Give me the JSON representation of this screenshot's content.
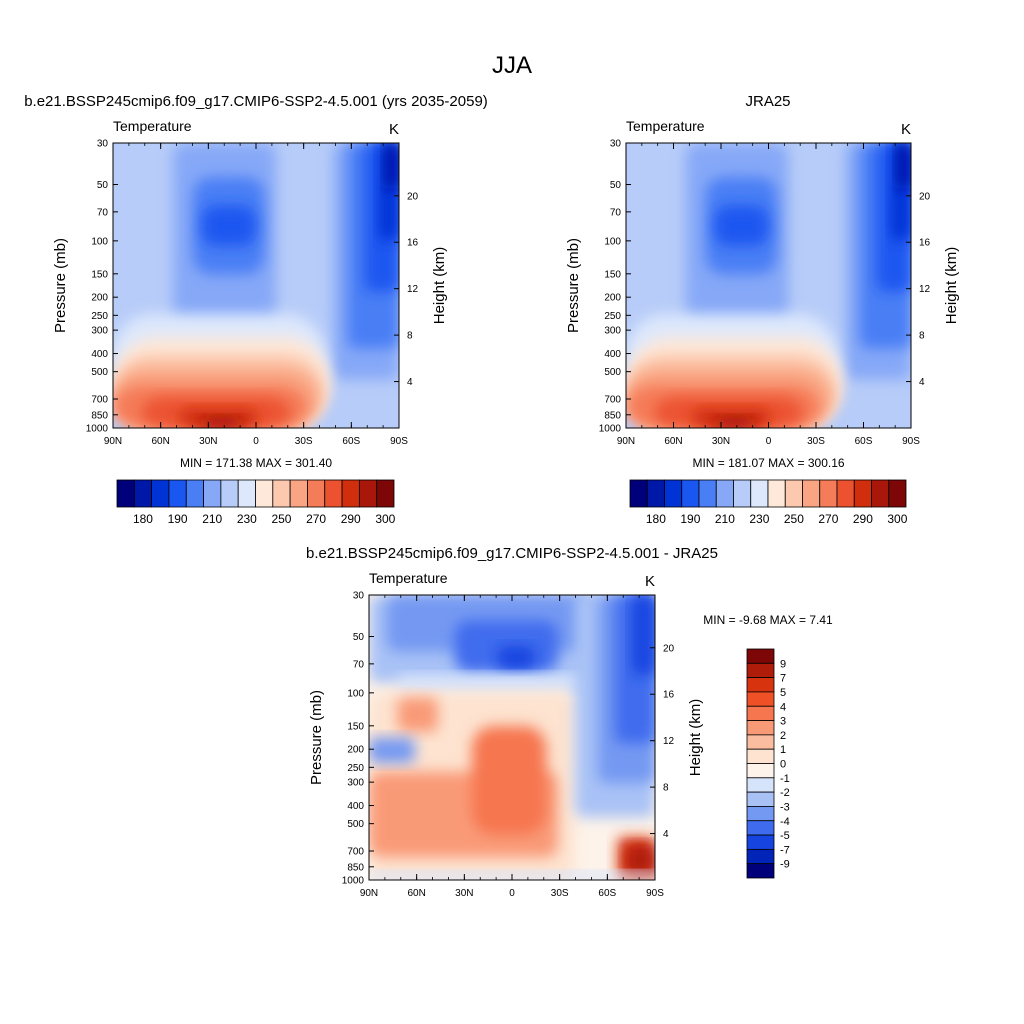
{
  "figure": {
    "title": "JJA"
  },
  "chart_data": [
    {
      "type": "heatmap",
      "title": "b.e21.BSSP245cmip6.f09_g17.CMIP6-SSP2-4.5.001 (yrs 2035-2059)",
      "variable": "Temperature",
      "units": "K",
      "ylabel": "Pressure (mb)",
      "y2label": "Height (km)",
      "x_ticks": [
        "90N",
        "60N",
        "30N",
        "0",
        "30S",
        "60S",
        "90S"
      ],
      "y_ticks": [
        "30",
        "50",
        "70",
        "100",
        "150",
        "200",
        "250",
        "300",
        "400",
        "500",
        "700",
        "850",
        "1000"
      ],
      "y2_ticks": [
        "20",
        "16",
        "12",
        "8",
        "4"
      ],
      "min": "171.38",
      "max": "301.40",
      "stats_text": "MIN = 171.38  MAX = 301.40",
      "colorbar_labels": [
        "180",
        "190",
        "210",
        "230",
        "250",
        "270",
        "290",
        "300"
      ],
      "colorbar_colors": [
        "#00007a",
        "#0018a8",
        "#0033d6",
        "#1a56f0",
        "#4a7ef5",
        "#86a8f7",
        "#b7ccf8",
        "#dde8fc",
        "#fde8da",
        "#fcc9ae",
        "#f9a482",
        "#f57c58",
        "#ec5230",
        "#d02e0c",
        "#a8170a",
        "#7d0607"
      ]
    },
    {
      "type": "heatmap",
      "title": "JRA25",
      "variable": "Temperature",
      "units": "K",
      "ylabel": "Pressure (mb)",
      "y2label": "Height (km)",
      "x_ticks": [
        "90N",
        "60N",
        "30N",
        "0",
        "30S",
        "60S",
        "90S"
      ],
      "y_ticks": [
        "30",
        "50",
        "70",
        "100",
        "150",
        "200",
        "250",
        "300",
        "400",
        "500",
        "700",
        "850",
        "1000"
      ],
      "y2_ticks": [
        "20",
        "16",
        "12",
        "8",
        "4"
      ],
      "min": "181.07",
      "max": "300.16",
      "stats_text": "MIN = 181.07  MAX = 300.16",
      "colorbar_labels": [
        "180",
        "190",
        "210",
        "230",
        "250",
        "270",
        "290",
        "300"
      ],
      "colorbar_colors": [
        "#00007a",
        "#0018a8",
        "#0033d6",
        "#1a56f0",
        "#4a7ef5",
        "#86a8f7",
        "#b7ccf8",
        "#dde8fc",
        "#fde8da",
        "#fcc9ae",
        "#f9a482",
        "#f57c58",
        "#ec5230",
        "#d02e0c",
        "#a8170a",
        "#7d0607"
      ]
    },
    {
      "type": "heatmap",
      "title": "b.e21.BSSP245cmip6.f09_g17.CMIP6-SSP2-4.5.001 - JRA25",
      "variable": "Temperature",
      "units": "K",
      "ylabel": "Pressure (mb)",
      "y2label": "Height (km)",
      "x_ticks": [
        "90N",
        "60N",
        "30N",
        "0",
        "30S",
        "60S",
        "90S"
      ],
      "y_ticks": [
        "30",
        "50",
        "70",
        "100",
        "150",
        "200",
        "250",
        "300",
        "400",
        "500",
        "700",
        "850",
        "1000"
      ],
      "y2_ticks": [
        "20",
        "16",
        "12",
        "8",
        "4"
      ],
      "min": "-9.68",
      "max": "7.41",
      "stats_text": "MIN =  -9.68  MAX =   7.41",
      "colorbar_labels": [
        "9",
        "7",
        "5",
        "4",
        "3",
        "2",
        "1",
        "0",
        "-1",
        "-2",
        "-3",
        "-4",
        "-5",
        "-7",
        "-9"
      ],
      "colorbar_colors": [
        "#7d0607",
        "#b01c0a",
        "#d8330f",
        "#ef5026",
        "#f67650",
        "#f99a77",
        "#fbbd9f",
        "#fde3d0",
        "#fdf3ea",
        "#d5e3fb",
        "#a9c2f6",
        "#7499f2",
        "#3f6cee",
        "#1544e0",
        "#0024b8",
        "#00007a"
      ]
    }
  ]
}
